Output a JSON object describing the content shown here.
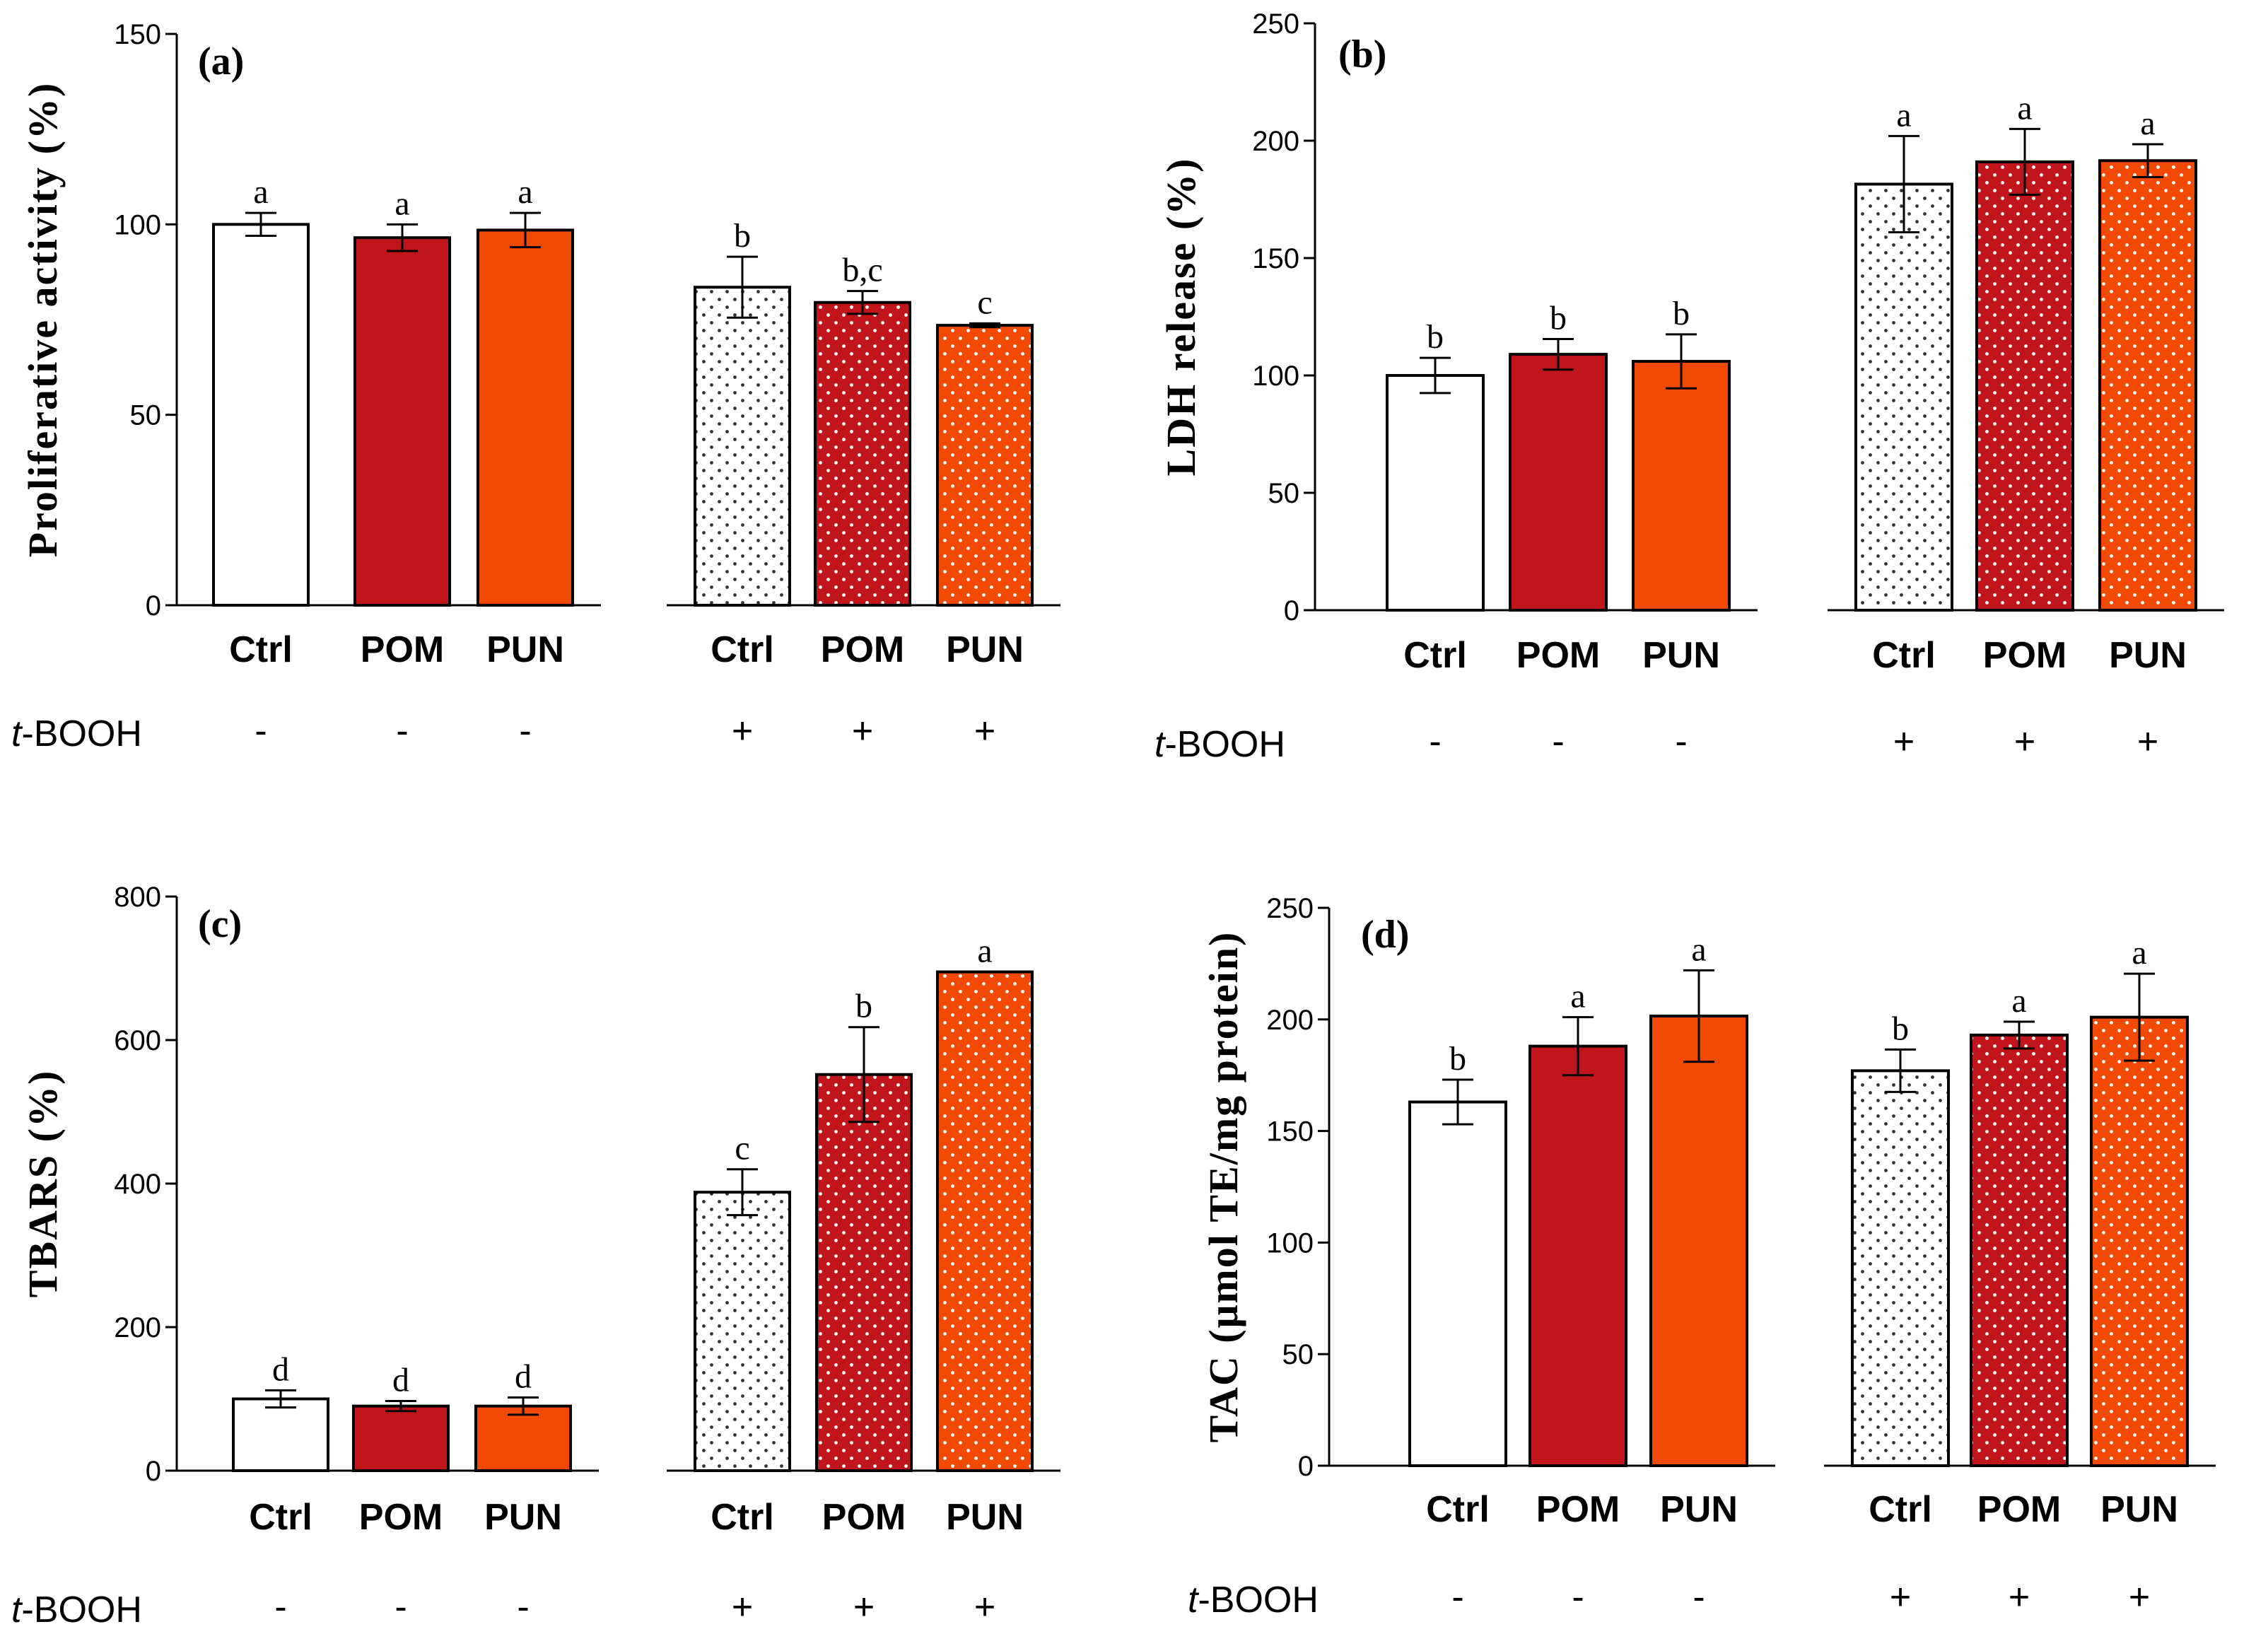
{
  "colors": {
    "ctrl": "#ffffff",
    "pom": "#c0161b",
    "pun": "#f24a05",
    "outline": "#000000"
  },
  "treatment": {
    "prefix": "t",
    "suffix": "-BOOH"
  },
  "chart_data": [
    {
      "id": "a",
      "type": "bar",
      "panel_label": "(a)",
      "title": "",
      "xlabel": "",
      "ylabel": "Proliferative activity (%)",
      "ylim": [
        0,
        150
      ],
      "yticks": [
        0,
        50,
        100,
        150
      ],
      "categories": [
        "Ctrl",
        "POM",
        "PUN",
        "Ctrl",
        "POM",
        "PUN"
      ],
      "treatment_signs": [
        "-",
        "-",
        "-",
        "+",
        "+",
        "+"
      ],
      "values": [
        100,
        96.5,
        98.5,
        83.5,
        79.5,
        73.5
      ],
      "errors": [
        3,
        3.5,
        4.5,
        8,
        3,
        0.5
      ],
      "significance": [
        "a",
        "a",
        "a",
        "b",
        "b,c",
        "c"
      ]
    },
    {
      "id": "b",
      "type": "bar",
      "panel_label": "(b)",
      "title": "",
      "xlabel": "",
      "ylabel": "LDH release (%)",
      "ylim": [
        0,
        250
      ],
      "yticks": [
        0,
        50,
        100,
        150,
        200,
        250
      ],
      "categories": [
        "Ctrl",
        "POM",
        "PUN",
        "Ctrl",
        "POM",
        "PUN"
      ],
      "treatment_signs": [
        "-",
        "-",
        "-",
        "+",
        "+",
        "+"
      ],
      "values": [
        100,
        109,
        106,
        181.5,
        191,
        191.5
      ],
      "errors": [
        7.5,
        6.5,
        11.5,
        20.5,
        14,
        7
      ],
      "significance": [
        "b",
        "b",
        "b",
        "a",
        "a",
        "a"
      ]
    },
    {
      "id": "c",
      "type": "bar",
      "panel_label": "(c)",
      "title": "",
      "xlabel": "",
      "ylabel": "TBARS (%)",
      "ylim": [
        0,
        800
      ],
      "yticks": [
        0,
        200,
        400,
        600,
        800
      ],
      "categories": [
        "Ctrl",
        "POM",
        "PUN",
        "Ctrl",
        "POM",
        "PUN"
      ],
      "treatment_signs": [
        "-",
        "-",
        "-",
        "+",
        "+",
        "+"
      ],
      "values": [
        100,
        90,
        90,
        388,
        552,
        695
      ],
      "errors": [
        12,
        7,
        12,
        32,
        66,
        0
      ],
      "significance": [
        "d",
        "d",
        "d",
        "c",
        "b",
        "a"
      ]
    },
    {
      "id": "d",
      "type": "bar",
      "panel_label": "(d)",
      "title": "",
      "xlabel": "",
      "ylabel": "TAC (μmol TE/mg protein)",
      "ylim": [
        0,
        250
      ],
      "yticks": [
        0,
        50,
        100,
        150,
        200,
        250
      ],
      "categories": [
        "Ctrl",
        "POM",
        "PUN",
        "Ctrl",
        "POM",
        "PUN"
      ],
      "treatment_signs": [
        "-",
        "-",
        "-",
        "+",
        "+",
        "+"
      ],
      "values": [
        163,
        188,
        201.5,
        177,
        193,
        201
      ],
      "errors": [
        10,
        13,
        20.5,
        9.5,
        6,
        19.5
      ],
      "significance": [
        "b",
        "a",
        "a",
        "b",
        "a",
        "a"
      ]
    }
  ]
}
